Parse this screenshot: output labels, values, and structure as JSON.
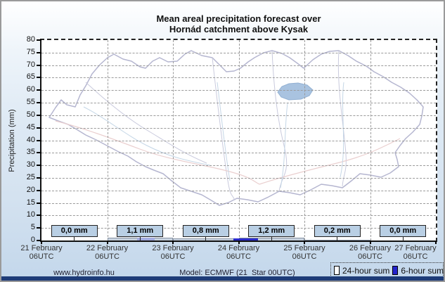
{
  "title": {
    "line1": "Mean areal precipitation forecast over",
    "line2": "Hornád catchment above Kysak"
  },
  "y_axis": {
    "label": "Precipitation (mm)",
    "tick_values": [
      0,
      5,
      10,
      15,
      20,
      25,
      30,
      35,
      40,
      45,
      50,
      55,
      60,
      65,
      70,
      75,
      80
    ]
  },
  "x_axis": {
    "ticks": [
      {
        "date": "21 February",
        "time": "06UTC"
      },
      {
        "date": "22 February",
        "time": "06UTC"
      },
      {
        "date": "23 February",
        "time": "06UTC"
      },
      {
        "date": "24 February",
        "time": "06UTC"
      },
      {
        "date": "25 February",
        "time": "06UTC"
      },
      {
        "date": "26 February",
        "time": "06UTC"
      },
      {
        "date": "27 February",
        "time": "06UTC"
      }
    ]
  },
  "daily_sums": {
    "labels": [
      "0,0 mm",
      "1,1 mm",
      "0,8 mm",
      "1,2 mm",
      "0,2 mm",
      "0,0 mm"
    ]
  },
  "legend": {
    "items": [
      {
        "label": "24-hour sum",
        "swatch_color": "#ffffff"
      },
      {
        "label": "6-hour sum",
        "swatch_color": "#2323cc"
      }
    ]
  },
  "footer": {
    "website": "www.hydroinfo.hu",
    "model_info": "Model: ECMWF (21  Star 00UTC)"
  },
  "colors": {
    "bar_24h": "#c7d1de",
    "bar_6h": "#2a2acc",
    "bar_6h_light": "#a3abdf",
    "label_box_bg": "#b9cfe4",
    "footer_bar": "#1e3c78",
    "grid": "#9a9a9a",
    "map_boundary": "#b5b6d0",
    "map_subboundary": "#c9cadd",
    "map_river_pink": "#eacfcf",
    "map_stream_blue": "#c4d6e6",
    "lake_fill": "#a9c3e0",
    "lake_edge": "#93b1d3"
  },
  "chart_data": {
    "type": "bar",
    "title": "Mean areal precipitation forecast over Hornád catchment above Kysak",
    "ylabel": "Precipitation (mm)",
    "ylim": [
      0,
      80
    ],
    "grid": true,
    "legend_position": "bottom-right",
    "background": "Hornád catchment map watermark with small lake",
    "x_tick_labels": [
      "21 February 06UTC",
      "22 February 06UTC",
      "23 February 06UTC",
      "24 February 06UTC",
      "25 February 06UTC",
      "26 February 06UTC",
      "27 February 06UTC"
    ],
    "series": [
      {
        "name": "24-hour sum",
        "unit": "mm",
        "categories": [
          "21-22 Feb",
          "22-23 Feb",
          "23-24 Feb",
          "24-25 Feb",
          "25-26 Feb",
          "26-27 Feb"
        ],
        "values": [
          0.0,
          1.1,
          0.8,
          1.2,
          0.2,
          0.0
        ]
      },
      {
        "name": "6-hour sum",
        "unit": "mm",
        "note": "tiny blue bars near the axis, values estimated from pixel heights",
        "bars": [
          {
            "start_day_offset": 1.45,
            "duration_days": 0.27,
            "value": 1.0,
            "tone": "light"
          },
          {
            "start_day_offset": 2.92,
            "duration_days": 0.37,
            "value": 0.8,
            "tone": "solid"
          }
        ]
      }
    ]
  }
}
